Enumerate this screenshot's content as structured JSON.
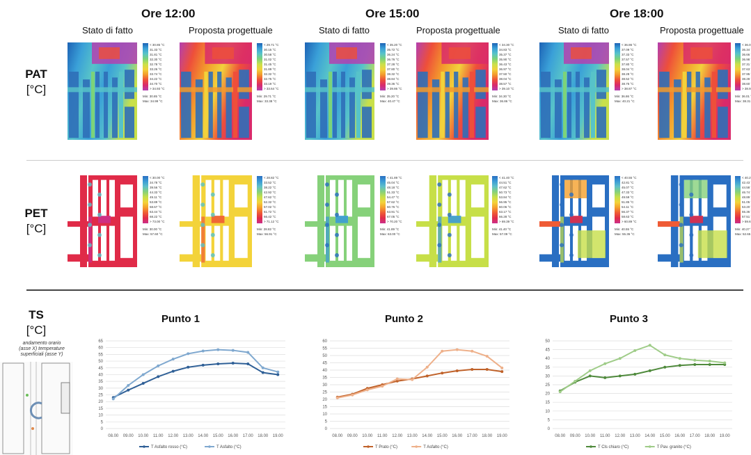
{
  "rows": {
    "pat": {
      "label": "PAT",
      "unit": "[°C]"
    },
    "pet": {
      "label": "PET",
      "unit": "[°C]"
    },
    "ts": {
      "label": "TS",
      "unit": "[°C]"
    }
  },
  "times": [
    {
      "title": "Ore 12:00",
      "existing": "Stato di fatto",
      "proposal": "Proposta progettuale"
    },
    {
      "title": "Ore 15:00",
      "existing": "Stato di fatto",
      "proposal": "Proposta progettuale"
    },
    {
      "title": "Ore 18:00",
      "existing": "Stato di fatto",
      "proposal": "Proposta progettuale"
    }
  ],
  "legends": {
    "pat": [
      {
        "lines": [
          "< 30.85 °C",
          "31.33 °C",
          "31.81 °C",
          "32.30 °C",
          "32.78 °C",
          "33.26 °C",
          "33.74 °C",
          "34.22 °C",
          "34.70 °C",
          "> 34.93 °C"
        ],
        "min": "Min: 30.85 °C",
        "max": "Max: 34.99 °C"
      },
      {
        "lines": [
          "< 29.71 °C",
          "30.15 °C",
          "30.58 °C",
          "31.02 °C",
          "31.45 °C",
          "31.89 °C",
          "32.32 °C",
          "32.75 °C",
          "33.19 °C",
          "> 33.64 °C"
        ],
        "min": "Min: 29.71 °C",
        "max": "Max: 33.38 °C"
      },
      {
        "lines": [
          "< 35.20 °C",
          "35.72 °C",
          "36.24 °C",
          "36.76 °C",
          "37.28 °C",
          "37.80 °C",
          "38.32 °C",
          "38.84 °C",
          "39.36 °C",
          "> 39.86 °C"
        ],
        "min": "Min: 35.20 °C",
        "max": "Max: 40.47 °C"
      },
      {
        "lines": [
          "< 34.30 °C",
          "34.83 °C",
          "35.37 °C",
          "35.90 °C",
          "36.43 °C",
          "36.97 °C",
          "37.50 °C",
          "38.04 °C",
          "38.57 °C",
          "> 39.10 °C"
        ],
        "min": "Min: 34.30 °C",
        "max": "Max: 36.86 °C"
      },
      {
        "lines": [
          "< 36.86 °C",
          "37.09 °C",
          "37.33 °C",
          "37.57 °C",
          "37.80 °C",
          "38.04 °C",
          "38.28 °C",
          "38.52 °C",
          "38.75 °C",
          "> 38.87 °C"
        ],
        "min": "Min: 36.86 °C",
        "max": "Max: 40.21 °C"
      },
      {
        "lines": [
          "< 36.01 °C",
          "36.34 °C",
          "36.66 °C",
          "36.98 °C",
          "37.31 °C",
          "37.63 °C",
          "37.95 °C",
          "38.28 °C",
          "38.60 °C",
          "> 38.92 °C"
        ],
        "min": "Min: 36.01 °C",
        "max": "Max: 38.31 °C"
      }
    ],
    "pet": [
      {
        "lines": [
          "< 30.00 °C",
          "34.78 °C",
          "39.56 °C",
          "44.33 °C",
          "49.11 °C",
          "53.89 °C",
          "58.67 °C",
          "63.44 °C",
          "68.22 °C",
          "> 73.00 °C"
        ],
        "min": "Min: 30.00 °C",
        "max": "Max: 57.60 °C"
      },
      {
        "lines": [
          "< 28.82 °C",
          "33.52 °C",
          "38.22 °C",
          "42.92 °C",
          "47.62 °C",
          "52.32 °C",
          "57.02 °C",
          "61.72 °C",
          "66.42 °C",
          "> 71.12 °C"
        ],
        "min": "Min: 28.82 °C",
        "max": "Max: 56.91 °C"
      },
      {
        "lines": [
          "< 41.89 °C",
          "45.04 °C",
          "48.18 °C",
          "51.33 °C",
          "54.47 °C",
          "57.62 °C",
          "60.76 °C",
          "63.91 °C",
          "67.05 °C",
          "> 70.20 °C"
        ],
        "min": "Min: 41.89 °C",
        "max": "Max: 63.00 °C"
      },
      {
        "lines": [
          "< 41.40 °C",
          "44.51 °C",
          "47.62 °C",
          "50.73 °C",
          "53.84 °C",
          "56.95 °C",
          "60.06 °C",
          "63.17 °C",
          "66.28 °C",
          "> 69.39 °C"
        ],
        "min": "Min: 41.40 °C",
        "max": "Max: 57.09 °C"
      },
      {
        "lines": [
          "< 40.55 °C",
          "42.81 °C",
          "45.07 °C",
          "47.33 °C",
          "49.59 °C",
          "51.85 °C",
          "54.11 °C",
          "56.37 °C",
          "58.63 °C",
          "> 60.89 °C"
        ],
        "min": "Min: 40.55 °C",
        "max": "Max: 55.36 °C"
      },
      {
        "lines": [
          "< 40.27 °C",
          "42.43 °C",
          "44.58 °C",
          "46.74 °C",
          "48.89 °C",
          "51.05 °C",
          "53.20 °C",
          "55.36 °C",
          "57.51 °C",
          "> 59.67 °C"
        ],
        "min": "Min: 40.27 °C",
        "max": "Max: 52.65 °C"
      }
    ]
  },
  "inset": {
    "note_lines": [
      "andamento orario",
      "(asse X) temperature",
      "superficiali (asse Y)"
    ]
  },
  "chart_data": [
    {
      "type": "line",
      "title": "Punto 1",
      "x": [
        "08.00",
        "09.00",
        "10.00",
        "11.00",
        "12.00",
        "13.00",
        "14.00",
        "15.00",
        "16.00",
        "17.00",
        "18.00",
        "19.00"
      ],
      "ylim": [
        0,
        65
      ],
      "yticks": [
        0,
        5,
        10,
        15,
        20,
        25,
        30,
        35,
        40,
        45,
        50,
        55,
        60,
        65
      ],
      "grid": true,
      "legend_position": "bottom",
      "series": [
        {
          "name": "T Asfalto rosso (°C)",
          "color": "#2e5f96",
          "values": [
            23.0,
            28.5,
            33.5,
            38.5,
            42.5,
            45.5,
            47.0,
            48.0,
            48.5,
            48.0,
            41.5,
            40.0
          ]
        },
        {
          "name": "T Asfalto (°C)",
          "color": "#7fa8cf",
          "values": [
            22.0,
            32.0,
            40.0,
            46.5,
            51.5,
            55.5,
            57.5,
            58.5,
            58.0,
            56.5,
            45.0,
            42.0
          ]
        }
      ]
    },
    {
      "type": "line",
      "title": "Punto 2",
      "x": [
        "08.00",
        "09.00",
        "10.00",
        "11.00",
        "12.00",
        "13.00",
        "14.00",
        "15.00",
        "16.00",
        "17.00",
        "18.00",
        "19.00"
      ],
      "ylim": [
        0,
        60
      ],
      "yticks": [
        0,
        5,
        10,
        15,
        20,
        25,
        30,
        35,
        40,
        45,
        50,
        55,
        60
      ],
      "grid": true,
      "legend_position": "bottom",
      "series": [
        {
          "name": "T Prato (°C)",
          "color": "#c0622a",
          "values": [
            21.5,
            23.5,
            27.5,
            30.0,
            32.5,
            34.0,
            36.0,
            38.0,
            39.5,
            40.5,
            40.5,
            39.0
          ]
        },
        {
          "name": "T Asfalto (°C)",
          "color": "#eeb08a",
          "values": [
            21.0,
            23.0,
            26.5,
            29.0,
            34.0,
            33.5,
            42.0,
            53.0,
            54.0,
            53.0,
            49.5,
            41.5
          ]
        }
      ]
    },
    {
      "type": "line",
      "title": "Punto 3",
      "x": [
        "08.00",
        "09.00",
        "10.00",
        "11.00",
        "12.00",
        "13.00",
        "14.00",
        "15.00",
        "16.00",
        "17.00",
        "18.00",
        "19.00"
      ],
      "ylim": [
        0,
        50
      ],
      "yticks": [
        0,
        5,
        10,
        15,
        20,
        25,
        30,
        35,
        40,
        45,
        50
      ],
      "grid": true,
      "legend_position": "bottom",
      "series": [
        {
          "name": "T Cls chiaro (°C)",
          "color": "#4f8a3c",
          "values": [
            21.5,
            26.5,
            30.0,
            29.0,
            30.0,
            31.0,
            33.0,
            35.0,
            36.0,
            36.5,
            36.5,
            36.5
          ]
        },
        {
          "name": "T Pav. granito (°C)",
          "color": "#9fcc88",
          "values": [
            21.0,
            27.0,
            33.0,
            37.0,
            40.0,
            44.5,
            47.5,
            42.0,
            40.0,
            39.0,
            38.5,
            37.5
          ]
        }
      ]
    }
  ]
}
